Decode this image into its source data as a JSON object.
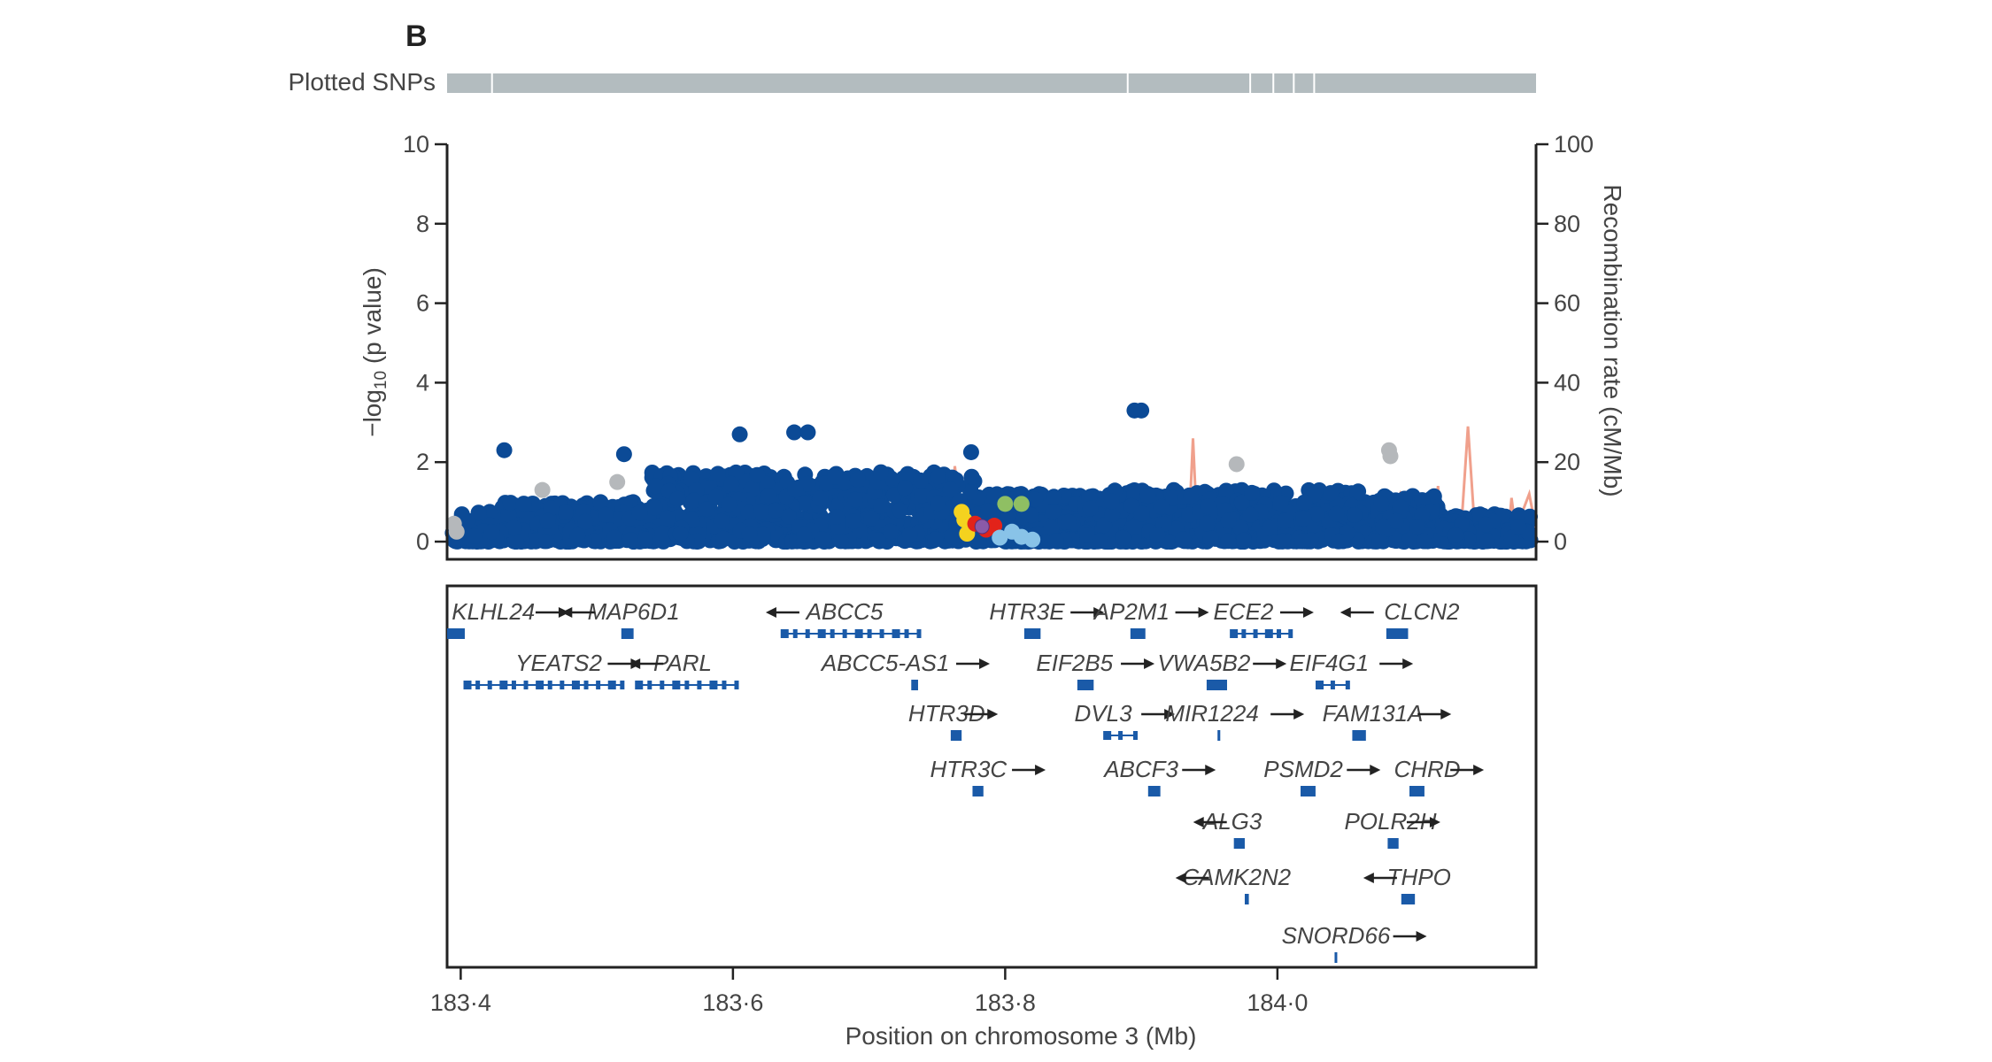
{
  "panel_label": "B",
  "colors": {
    "snp": "#0b4a96",
    "snp_grey": "#b5b8bb",
    "recomb": "#f0a08c",
    "gene": "#1a5aa8",
    "bar": "#b3bcbf",
    "ld_red": "#e2231a",
    "ld_yellow": "#f4d21f",
    "ld_green": "#8fbf63",
    "ld_lightblue": "#89c3e8",
    "lead": "#8a5aa8"
  },
  "chart_data": {
    "type": "scatter",
    "title": "",
    "plotted_snps_label": "Plotted SNPs",
    "plotted_snps_breaks": [
      183.423,
      183.89,
      183.98,
      183.997,
      184.012,
      184.027
    ],
    "xlabel": "Position on chromosome 3 (Mb)",
    "ylabel_left_prefix": "−log",
    "ylabel_left_sub": "10",
    "ylabel_left_suffix": " (p value)",
    "ylabel_right": "Recombination rate (cM/Mb)",
    "xlim": [
      183.39,
      184.19
    ],
    "ylim_left": [
      0,
      10
    ],
    "ylim_right": [
      0,
      100
    ],
    "x_ticks": [
      183.4,
      183.6,
      183.8,
      184.0
    ],
    "x_tick_labels": [
      "183·4",
      "183·6",
      "183·8",
      "184·0"
    ],
    "y_left_ticks": [
      0,
      2,
      4,
      6,
      8,
      10
    ],
    "y_left_tick_labels": [
      "0",
      "2",
      "4",
      "6",
      "8",
      "10"
    ],
    "y_right_ticks": [
      0,
      20,
      40,
      60,
      80,
      100
    ],
    "y_right_tick_labels": [
      "0",
      "20",
      "40",
      "60",
      "80",
      "100"
    ],
    "highlight_points": [
      {
        "x": 183.895,
        "y": 3.3,
        "color": "snp"
      },
      {
        "x": 183.9,
        "y": 3.3,
        "color": "snp"
      },
      {
        "x": 183.605,
        "y": 2.7,
        "color": "snp"
      },
      {
        "x": 183.645,
        "y": 2.75,
        "color": "snp"
      },
      {
        "x": 183.655,
        "y": 2.75,
        "color": "snp"
      },
      {
        "x": 183.432,
        "y": 2.3,
        "color": "snp"
      },
      {
        "x": 183.52,
        "y": 2.2,
        "color": "snp"
      },
      {
        "x": 183.775,
        "y": 2.25,
        "color": "snp"
      },
      {
        "x": 184.082,
        "y": 2.3,
        "color": "snp_grey"
      },
      {
        "x": 184.083,
        "y": 2.15,
        "color": "snp_grey"
      },
      {
        "x": 183.97,
        "y": 1.95,
        "color": "snp_grey"
      },
      {
        "x": 183.515,
        "y": 1.5,
        "color": "snp_grey"
      },
      {
        "x": 183.46,
        "y": 1.3,
        "color": "snp_grey"
      },
      {
        "x": 183.395,
        "y": 0.45,
        "color": "snp_grey"
      },
      {
        "x": 183.397,
        "y": 0.25,
        "color": "snp_grey"
      },
      {
        "x": 183.8,
        "y": 0.95,
        "color": "ld_green"
      },
      {
        "x": 183.812,
        "y": 0.95,
        "color": "ld_green"
      },
      {
        "x": 183.768,
        "y": 0.75,
        "color": "ld_yellow"
      },
      {
        "x": 183.77,
        "y": 0.55,
        "color": "ld_yellow"
      },
      {
        "x": 183.772,
        "y": 0.2,
        "color": "ld_yellow"
      },
      {
        "x": 183.778,
        "y": 0.45,
        "color": "ld_red"
      },
      {
        "x": 183.792,
        "y": 0.4,
        "color": "ld_red"
      },
      {
        "x": 183.786,
        "y": 0.3,
        "color": "ld_red"
      },
      {
        "x": 183.805,
        "y": 0.25,
        "color": "ld_lightblue"
      },
      {
        "x": 183.812,
        "y": 0.12,
        "color": "ld_lightblue"
      },
      {
        "x": 183.796,
        "y": 0.1,
        "color": "ld_lightblue"
      },
      {
        "x": 183.82,
        "y": 0.05,
        "color": "ld_lightblue"
      },
      {
        "x": 183.783,
        "y": 0.38,
        "color": "lead"
      }
    ],
    "recombination": [
      [
        183.39,
        3
      ],
      [
        183.4,
        3.5
      ],
      [
        183.41,
        3
      ],
      [
        183.43,
        4.5
      ],
      [
        183.45,
        3
      ],
      [
        183.47,
        3.5
      ],
      [
        183.49,
        3
      ],
      [
        183.515,
        3.5
      ],
      [
        183.518,
        9
      ],
      [
        183.521,
        3.5
      ],
      [
        183.55,
        3
      ],
      [
        183.6,
        3.5
      ],
      [
        183.63,
        4
      ],
      [
        183.64,
        7
      ],
      [
        183.655,
        3
      ],
      [
        183.7,
        3.5
      ],
      [
        183.73,
        4
      ],
      [
        183.75,
        5.5
      ],
      [
        183.76,
        4
      ],
      [
        183.763,
        19
      ],
      [
        183.768,
        4
      ],
      [
        183.785,
        3.5
      ],
      [
        183.81,
        4
      ],
      [
        183.83,
        8
      ],
      [
        183.84,
        4
      ],
      [
        183.87,
        3
      ],
      [
        183.89,
        4
      ],
      [
        183.9,
        6
      ],
      [
        183.91,
        3.5
      ],
      [
        183.935,
        3
      ],
      [
        183.938,
        26
      ],
      [
        183.941,
        3
      ],
      [
        183.97,
        4
      ],
      [
        184.0,
        3.5
      ],
      [
        184.03,
        3
      ],
      [
        184.06,
        4
      ],
      [
        184.08,
        6
      ],
      [
        184.09,
        12
      ],
      [
        184.095,
        3
      ],
      [
        184.115,
        3
      ],
      [
        184.118,
        14
      ],
      [
        184.12,
        3
      ],
      [
        184.135,
        3
      ],
      [
        184.14,
        29
      ],
      [
        184.145,
        3
      ],
      [
        184.17,
        3
      ],
      [
        184.172,
        11
      ],
      [
        184.175,
        3
      ],
      [
        184.185,
        12
      ],
      [
        184.19,
        3
      ]
    ]
  },
  "genes": [
    {
      "name": "KLHL24",
      "dir": "right",
      "start": 183.39,
      "end": 183.403,
      "row": 0,
      "label_x": 183.424,
      "arrow_x": 183.455
    },
    {
      "name": "MAP6D1",
      "dir": "left",
      "start": 183.518,
      "end": 183.527,
      "row": 0,
      "label_x": 183.527,
      "arrow_x": 183.478
    },
    {
      "name": "ABCC5",
      "dir": "left",
      "start": 183.637,
      "end": 183.737,
      "row": 0,
      "label_x": 183.682,
      "arrow_x": 183.628
    },
    {
      "name": "HTR3E",
      "dir": "right",
      "start": 183.814,
      "end": 183.826,
      "row": 0,
      "label_x": 183.816,
      "arrow_x": 183.848
    },
    {
      "name": "AP2M1",
      "dir": "right",
      "start": 183.892,
      "end": 183.903,
      "row": 0,
      "label_x": 183.893,
      "arrow_x": 183.925
    },
    {
      "name": "ECE2",
      "dir": "right",
      "start": 183.967,
      "end": 184.01,
      "row": 0,
      "label_x": 183.975,
      "arrow_x": 184.002
    },
    {
      "name": "CLCN2",
      "dir": "left",
      "start": 184.08,
      "end": 184.096,
      "row": 0,
      "label_x": 184.106,
      "arrow_x": 184.05
    },
    {
      "name": "YEATS2",
      "dir": "right",
      "start": 183.404,
      "end": 183.519,
      "row": 1,
      "label_x": 183.472,
      "arrow_x": 183.508
    },
    {
      "name": "PARL",
      "dir": "left",
      "start": 183.53,
      "end": 183.603,
      "row": 1,
      "label_x": 183.563,
      "arrow_x": 183.528
    },
    {
      "name": "ABCC5-AS1",
      "dir": "right",
      "start": 183.731,
      "end": 183.736,
      "row": 1,
      "label_x": 183.712,
      "arrow_x": 183.764
    },
    {
      "name": "EIF2B5",
      "dir": "right",
      "start": 183.853,
      "end": 183.865,
      "row": 1,
      "label_x": 183.851,
      "arrow_x": 183.885
    },
    {
      "name": "VWA5B2",
      "dir": "right",
      "start": 183.948,
      "end": 183.963,
      "row": 1,
      "label_x": 183.946,
      "arrow_x": 183.982
    },
    {
      "name": "EIF4G1",
      "dir": "right",
      "start": 184.03,
      "end": 184.052,
      "row": 1,
      "label_x": 184.038,
      "arrow_x": 184.075
    },
    {
      "name": "HTR3D",
      "dir": "right",
      "start": 183.76,
      "end": 183.768,
      "row": 2,
      "label_x": 183.757,
      "arrow_x": 183.77
    },
    {
      "name": "DVL3",
      "dir": "right",
      "start": 183.874,
      "end": 183.896,
      "row": 2,
      "label_x": 183.872,
      "arrow_x": 183.9
    },
    {
      "name": "MIR1224",
      "dir": "right",
      "start": 183.956,
      "end": 183.958,
      "row": 2,
      "label_x": 183.952,
      "arrow_x": 183.995
    },
    {
      "name": "FAM131A",
      "dir": "right",
      "start": 184.055,
      "end": 184.065,
      "row": 2,
      "label_x": 184.07,
      "arrow_x": 184.103
    },
    {
      "name": "HTR3C",
      "dir": "right",
      "start": 183.776,
      "end": 183.784,
      "row": 3,
      "label_x": 183.773,
      "arrow_x": 183.805
    },
    {
      "name": "ABCF3",
      "dir": "right",
      "start": 183.905,
      "end": 183.914,
      "row": 3,
      "label_x": 183.9,
      "arrow_x": 183.93
    },
    {
      "name": "PSMD2",
      "dir": "right",
      "start": 184.017,
      "end": 184.028,
      "row": 3,
      "label_x": 184.019,
      "arrow_x": 184.051
    },
    {
      "name": "CHRD",
      "dir": "right",
      "start": 184.097,
      "end": 184.108,
      "row": 3,
      "label_x": 184.11,
      "arrow_x": 184.127
    },
    {
      "name": "ALG3",
      "dir": "left",
      "start": 183.968,
      "end": 183.976,
      "row": 4,
      "label_x": 183.967,
      "arrow_x": 183.942
    },
    {
      "name": "POLR2H",
      "dir": "right",
      "start": 184.081,
      "end": 184.089,
      "row": 4,
      "label_x": 184.083,
      "arrow_x": 184.095
    },
    {
      "name": "CAMK2N2",
      "dir": "left",
      "start": 183.976,
      "end": 183.979,
      "row": 5,
      "label_x": 183.97,
      "arrow_x": 183.929
    },
    {
      "name": "THPO",
      "dir": "left",
      "start": 184.091,
      "end": 184.101,
      "row": 5,
      "label_x": 184.104,
      "arrow_x": 184.067
    },
    {
      "name": "SNORD66",
      "dir": "right",
      "start": 184.042,
      "end": 184.043,
      "row": 6,
      "label_x": 184.043,
      "arrow_x": 184.085
    }
  ]
}
